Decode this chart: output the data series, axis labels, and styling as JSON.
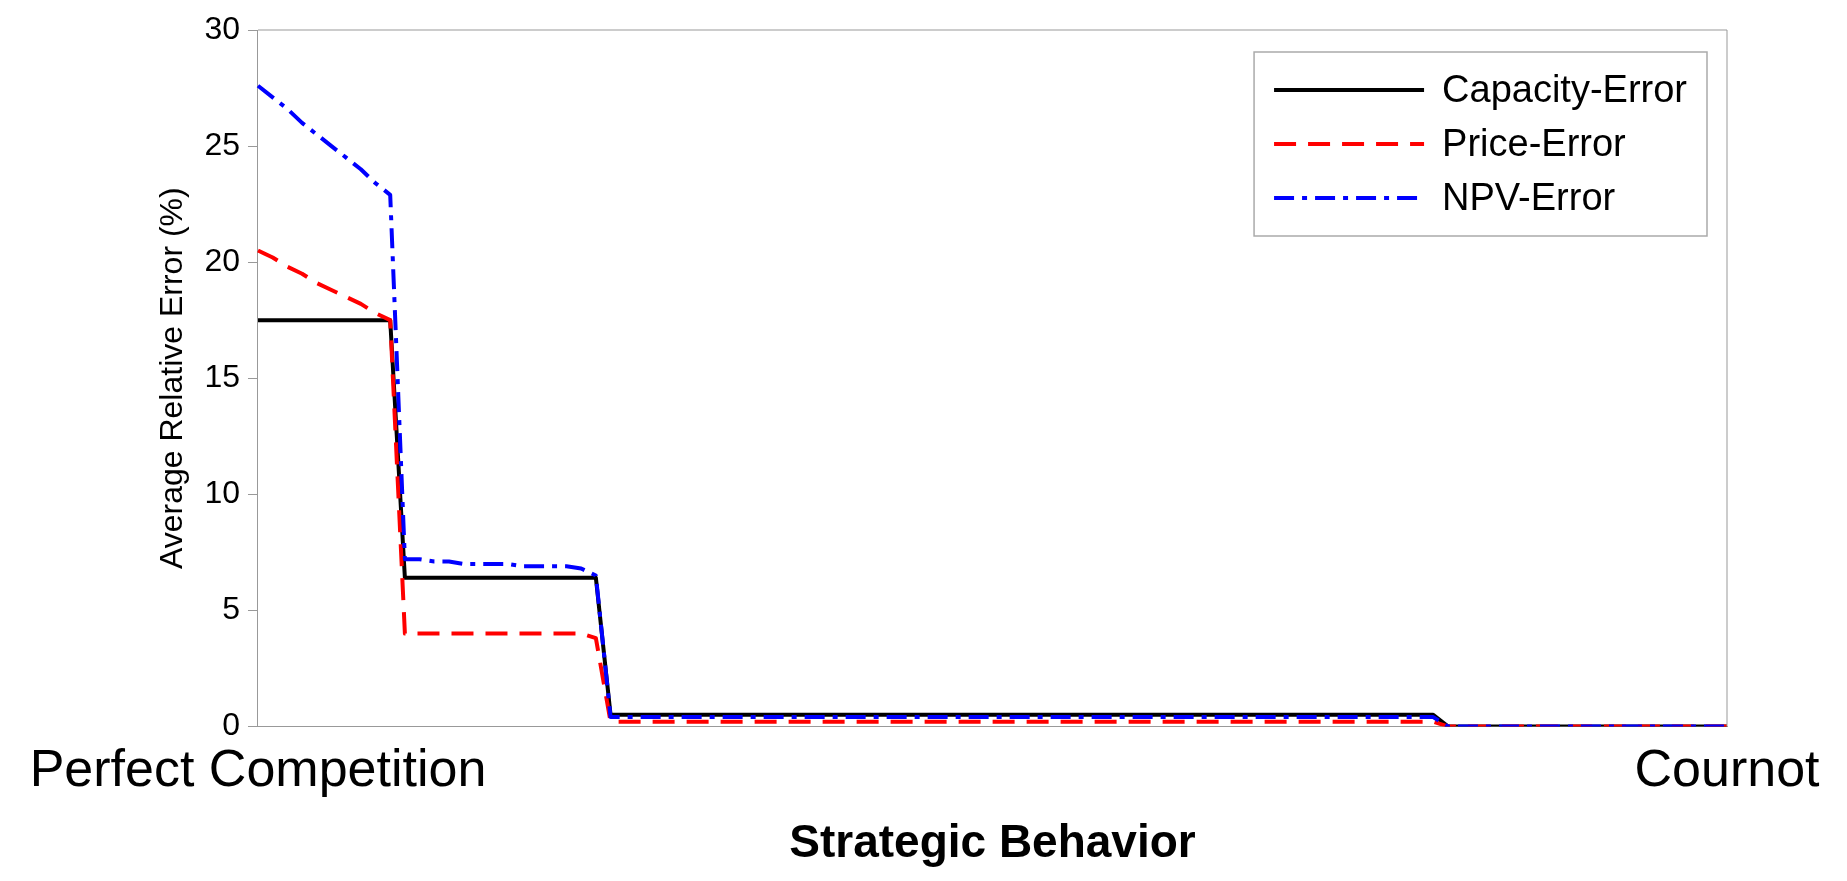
{
  "chart_data": {
    "type": "line",
    "xlabel": "Strategic Behavior",
    "ylabel": "Average Relative Error (%)",
    "categories": [
      "Perfect Competition",
      null,
      null,
      null,
      null,
      null,
      null,
      null,
      null,
      null,
      null,
      null,
      null,
      null,
      null,
      null,
      null,
      null,
      null,
      null,
      null,
      null,
      null,
      null,
      null,
      null,
      null,
      null,
      null,
      null,
      null,
      null,
      null,
      null,
      null,
      null,
      null,
      null,
      null,
      null,
      null,
      null,
      null,
      null,
      null,
      null,
      null,
      null,
      null,
      null,
      null,
      null,
      null,
      null,
      null,
      null,
      null,
      null,
      null,
      null,
      null,
      null,
      null,
      null,
      null,
      null,
      null,
      null,
      null,
      null,
      null,
      null,
      null,
      null,
      null,
      null,
      null,
      null,
      null,
      null,
      null,
      null,
      null,
      null,
      null,
      null,
      null,
      null,
      null,
      null,
      null,
      null,
      null,
      null,
      null,
      null,
      null,
      null,
      null,
      null,
      "Cournot"
    ],
    "series": [
      {
        "name": "Capacity-Error",
        "color": "#000000",
        "line_style": "solid",
        "values": [
          17.5,
          17.5,
          17.5,
          17.5,
          17.5,
          17.5,
          17.5,
          17.5,
          17.5,
          17.5,
          6.4,
          6.4,
          6.4,
          6.4,
          6.4,
          6.4,
          6.4,
          6.4,
          6.4,
          6.4,
          6.4,
          6.4,
          6.4,
          6.4,
          0.5,
          0.5,
          0.5,
          0.5,
          0.5,
          0.5,
          0.5,
          0.5,
          0.5,
          0.5,
          0.5,
          0.5,
          0.5,
          0.5,
          0.5,
          0.5,
          0.5,
          0.5,
          0.5,
          0.5,
          0.5,
          0.5,
          0.5,
          0.5,
          0.5,
          0.5,
          0.5,
          0.5,
          0.5,
          0.5,
          0.5,
          0.5,
          0.5,
          0.5,
          0.5,
          0.5,
          0.5,
          0.5,
          0.5,
          0.5,
          0.5,
          0.5,
          0.5,
          0.5,
          0.5,
          0.5,
          0.5,
          0.5,
          0.5,
          0.5,
          0.5,
          0.5,
          0.5,
          0.5,
          0.5,
          0.5,
          0.5,
          0,
          0,
          0,
          0,
          0,
          0,
          0,
          0,
          0,
          0,
          0,
          0,
          0,
          0,
          0,
          0,
          0,
          0,
          0,
          0
        ]
      },
      {
        "name": "Price-Error",
        "color": "#ff0000",
        "line_style": "dashed",
        "values": [
          20.5,
          20.2,
          19.8,
          19.5,
          19.1,
          18.8,
          18.5,
          18.2,
          17.8,
          17.5,
          4.0,
          4.0,
          4.0,
          4.0,
          4.0,
          4.0,
          4.0,
          4.0,
          4.0,
          4.0,
          4.0,
          4.0,
          4.0,
          3.8,
          0.2,
          0.2,
          0.2,
          0.2,
          0.2,
          0.2,
          0.2,
          0.2,
          0.2,
          0.2,
          0.2,
          0.2,
          0.2,
          0.2,
          0.2,
          0.2,
          0.2,
          0.2,
          0.2,
          0.2,
          0.2,
          0.2,
          0.2,
          0.2,
          0.2,
          0.2,
          0.2,
          0.2,
          0.2,
          0.2,
          0.2,
          0.2,
          0.2,
          0.2,
          0.2,
          0.2,
          0.2,
          0.2,
          0.2,
          0.2,
          0.2,
          0.2,
          0.2,
          0.2,
          0.2,
          0.2,
          0.2,
          0.2,
          0.2,
          0.2,
          0.2,
          0.2,
          0.2,
          0.2,
          0.2,
          0.2,
          0.2,
          0,
          0,
          0,
          0,
          0,
          0,
          0,
          0,
          0,
          0,
          0,
          0,
          0,
          0,
          0,
          0,
          0,
          0,
          0,
          0
        ]
      },
      {
        "name": "NPV-Error",
        "color": "#0000ff",
        "line_style": "dashdot",
        "values": [
          27.6,
          27.1,
          26.6,
          26.0,
          25.5,
          25.0,
          24.5,
          24.0,
          23.4,
          22.9,
          7.2,
          7.2,
          7.1,
          7.1,
          7.0,
          7.0,
          7.0,
          7.0,
          6.9,
          6.9,
          6.9,
          6.9,
          6.8,
          6.5,
          0.4,
          0.4,
          0.4,
          0.4,
          0.4,
          0.4,
          0.4,
          0.4,
          0.4,
          0.4,
          0.4,
          0.4,
          0.4,
          0.4,
          0.4,
          0.4,
          0.4,
          0.4,
          0.4,
          0.4,
          0.4,
          0.4,
          0.4,
          0.4,
          0.4,
          0.4,
          0.4,
          0.4,
          0.4,
          0.4,
          0.4,
          0.4,
          0.4,
          0.4,
          0.4,
          0.4,
          0.4,
          0.4,
          0.4,
          0.4,
          0.4,
          0.4,
          0.4,
          0.4,
          0.4,
          0.4,
          0.4,
          0.4,
          0.4,
          0.4,
          0.4,
          0.4,
          0.4,
          0.4,
          0.4,
          0.4,
          0.4,
          0,
          0,
          0,
          0,
          0,
          0,
          0,
          0,
          0,
          0,
          0,
          0,
          0,
          0,
          0,
          0,
          0,
          0,
          0,
          0
        ]
      }
    ],
    "ylim": [
      0,
      30
    ],
    "yticks": [
      0,
      5,
      10,
      15,
      20,
      25,
      30
    ],
    "grid": false,
    "legend": "top right",
    "marker": "none"
  }
}
